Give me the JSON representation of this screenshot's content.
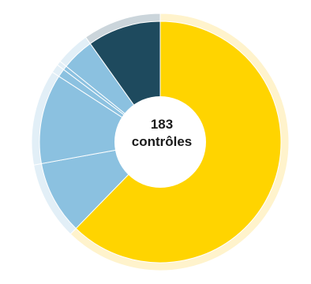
{
  "center": {
    "count": "183",
    "unit": "contrôles"
  },
  "chart_data": {
    "type": "pie",
    "title": "",
    "total": 183,
    "series": [
      {
        "name": "",
        "values": [
          114,
          18,
          22,
          2,
          1,
          8,
          18
        ],
        "colors": [
          "#FFD400",
          "#8BC1E0",
          "#8BC1E0",
          "#8BC1E0",
          "#8BC1E0",
          "#8BC1E0",
          "#1E4A5E"
        ]
      },
      {
        "name": "",
        "values": [
          114,
          18,
          22,
          2,
          1,
          8,
          18
        ],
        "colors": [
          "#FFF3CC",
          "#E2EFF7",
          "#E2EFF7",
          "#E2EFF7",
          "#E2EFF7",
          "#E2EFF7",
          "#CBD5DB"
        ]
      }
    ],
    "legend": "none",
    "grid": false
  }
}
